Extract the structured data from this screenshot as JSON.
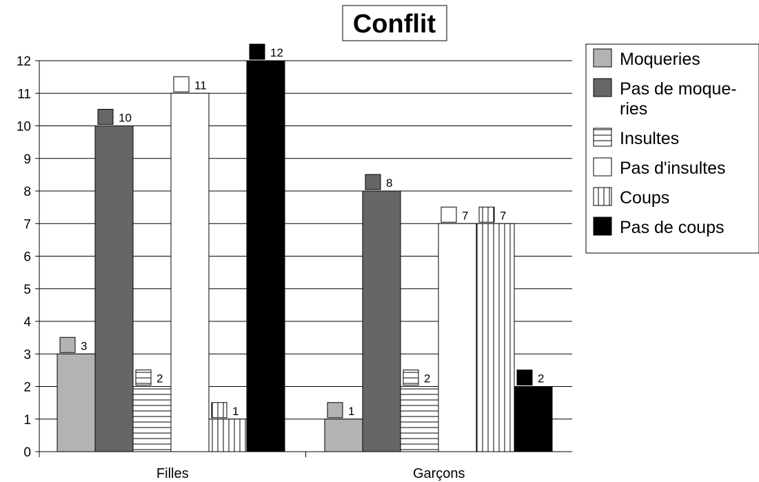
{
  "chart_data": {
    "type": "bar",
    "title": "Conflit",
    "categories": [
      "Filles",
      "Garçons"
    ],
    "ylim": [
      0,
      12
    ],
    "yticks": [
      0,
      1,
      2,
      3,
      4,
      5,
      6,
      7,
      8,
      9,
      10,
      11,
      12
    ],
    "grid": true,
    "legend_position": "right",
    "series": [
      {
        "name": "Moqueries",
        "values": [
          3,
          1
        ],
        "fill": "#b3b3b3",
        "pattern": "solid",
        "legend_lines": [
          "Moqueries"
        ]
      },
      {
        "name": "Pas de moqueries",
        "values": [
          10,
          8
        ],
        "fill": "#666666",
        "pattern": "solid",
        "legend_lines": [
          "Pas de moque-",
          "ries"
        ]
      },
      {
        "name": "Insultes",
        "values": [
          2,
          2
        ],
        "fill": "#ffffff",
        "pattern": "horizontal-lines",
        "legend_lines": [
          "Insultes"
        ]
      },
      {
        "name": "Pas d'insultes",
        "values": [
          11,
          7
        ],
        "fill": "#ffffff",
        "pattern": "solid",
        "legend_lines": [
          "Pas d'insultes"
        ]
      },
      {
        "name": "Coups",
        "values": [
          1,
          7
        ],
        "fill": "#ffffff",
        "pattern": "vertical-lines",
        "legend_lines": [
          "Coups"
        ]
      },
      {
        "name": "Pas de coups",
        "values": [
          12,
          2
        ],
        "fill": "#000000",
        "pattern": "solid",
        "legend_lines": [
          "Pas de coups"
        ]
      }
    ],
    "data_labels": [
      [
        "3",
        "1"
      ],
      [
        "10",
        "8"
      ],
      [
        "2",
        "2"
      ],
      [
        "11",
        "7"
      ],
      [
        "1",
        "7"
      ],
      [
        "12",
        "2"
      ]
    ]
  }
}
